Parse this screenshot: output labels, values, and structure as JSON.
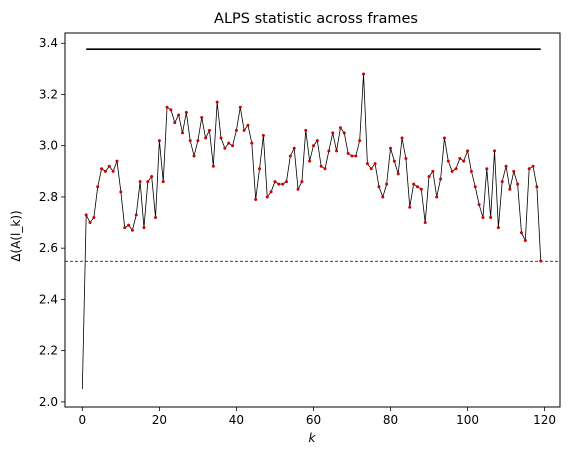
{
  "chart_data": {
    "type": "line",
    "title": "ALPS statistic across frames",
    "xlabel": "k",
    "ylabel": "Δ(A(l_k))",
    "xlim": [
      -4.5,
      124
    ],
    "ylim": [
      1.98,
      3.44
    ],
    "xticks": [
      0,
      20,
      40,
      60,
      80,
      100,
      120
    ],
    "yticks": [
      2.0,
      2.2,
      2.4,
      2.6,
      2.8,
      3.0,
      3.2,
      3.4
    ],
    "ytick_labels": [
      "2.0",
      "2.2",
      "2.4",
      "2.6",
      "2.8",
      "3.0",
      "3.2",
      "3.4"
    ],
    "grid": false,
    "series": [
      {
        "x": [
          0,
          1,
          2,
          3,
          4,
          5,
          6,
          7,
          8,
          9,
          10,
          11,
          12,
          13,
          14,
          15,
          16,
          17,
          18,
          19,
          20,
          21,
          22,
          23,
          24,
          25,
          26,
          27,
          28,
          29,
          30,
          31,
          32,
          33,
          34,
          35,
          36,
          37,
          38,
          39,
          40,
          41,
          42,
          43,
          44,
          45,
          46,
          47,
          48,
          49,
          50,
          51,
          52,
          53,
          54,
          55,
          56,
          57,
          58,
          59,
          60,
          61,
          62,
          63,
          64,
          65,
          66,
          67,
          68,
          69,
          70,
          71,
          72,
          73,
          74,
          75,
          76,
          77,
          78,
          79,
          80,
          81,
          82,
          83,
          84,
          85,
          86,
          87,
          88,
          89,
          90,
          91,
          92,
          93,
          94,
          95,
          96,
          97,
          98,
          99,
          100,
          101,
          102,
          103,
          104,
          105,
          106,
          107,
          108,
          109,
          110,
          111,
          112,
          113,
          114,
          115,
          116,
          117,
          118,
          119
        ],
        "y": [
          2.05,
          2.73,
          2.7,
          2.72,
          2.84,
          2.91,
          2.9,
          2.92,
          2.9,
          2.94,
          2.82,
          2.68,
          2.69,
          2.67,
          2.73,
          2.86,
          2.68,
          2.86,
          2.88,
          2.72,
          3.02,
          2.86,
          3.15,
          3.14,
          3.09,
          3.12,
          3.05,
          3.13,
          3.02,
          2.96,
          3.02,
          3.11,
          3.03,
          3.06,
          2.92,
          3.17,
          3.03,
          2.99,
          3.01,
          3.0,
          3.06,
          3.15,
          3.06,
          3.08,
          3.01,
          2.79,
          2.91,
          3.04,
          2.8,
          2.82,
          2.86,
          2.85,
          2.85,
          2.86,
          2.96,
          2.99,
          2.83,
          2.86,
          3.06,
          2.94,
          3.0,
          3.02,
          2.92,
          2.91,
          2.98,
          3.05,
          2.98,
          3.07,
          3.05,
          2.97,
          2.96,
          2.96,
          3.02,
          3.28,
          2.93,
          2.91,
          2.93,
          2.84,
          2.8,
          2.85,
          2.99,
          2.94,
          2.89,
          3.03,
          2.95,
          2.76,
          2.85,
          2.84,
          2.83,
          2.7,
          2.88,
          2.9,
          2.8,
          2.87,
          3.03,
          2.94,
          2.9,
          2.91,
          2.95,
          2.94,
          2.98,
          2.9,
          2.84,
          2.77,
          2.72,
          2.91,
          2.72,
          2.98,
          2.68,
          2.86,
          2.92,
          2.83,
          2.9,
          2.85,
          2.66,
          2.63,
          2.91,
          2.92,
          2.84,
          2.55
        ],
        "line_color": "#000000",
        "marker_color": "#cc0000"
      }
    ],
    "annotations": [
      {
        "type": "hline_solid",
        "y": 3.377,
        "x_start": 1,
        "x_end": 119,
        "color": "#000000"
      },
      {
        "type": "hline_dashed",
        "y": 2.549,
        "color": "#000000"
      }
    ]
  }
}
